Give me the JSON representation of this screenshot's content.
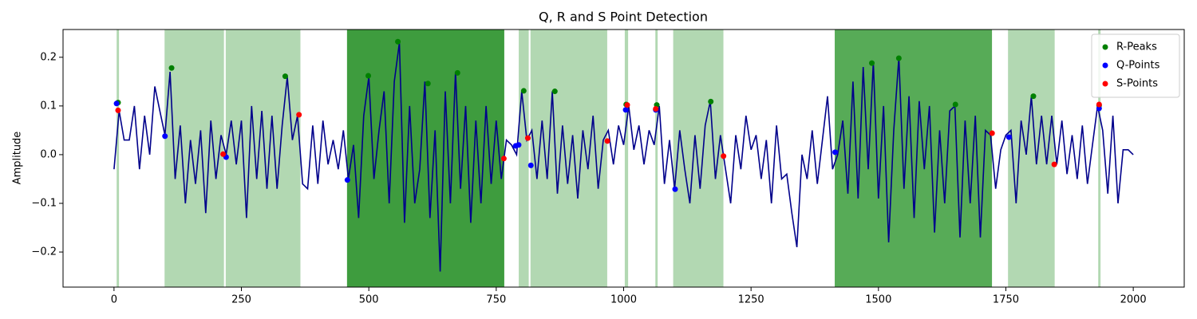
{
  "chart_data": {
    "type": "line",
    "title": "Q, R and S Point Detection",
    "y_label": "Amplitude",
    "xlim": [
      -100,
      2100
    ],
    "ylim": [
      -0.272,
      0.257
    ],
    "xticks": [
      0,
      250,
      500,
      750,
      1000,
      1250,
      1500,
      1750,
      2000
    ],
    "yticks": [
      {
        "value": -0.2,
        "label": "−0.2"
      },
      {
        "value": -0.1,
        "label": "−0.1"
      },
      {
        "value": 0,
        "label": "0.0"
      },
      0.1,
      0.2
    ],
    "legend": "upper right",
    "spans": [
      {
        "x": [
          6,
          9
        ],
        "color": "#b2d8b2"
      },
      {
        "x": [
          100,
          215
        ],
        "color": "#b2d8b2"
      },
      {
        "x": [
          220,
          365
        ],
        "color": "#b2d8b2"
      },
      {
        "x": [
          458,
          765
        ],
        "color": "#3e9c3e"
      },
      {
        "x": [
          795,
          813
        ],
        "color": "#b2d8b2"
      },
      {
        "x": [
          818,
          967
        ],
        "color": "#b2d8b2"
      },
      {
        "x": [
          1003,
          1008
        ],
        "color": "#b2d8b2"
      },
      {
        "x": [
          1063,
          1066
        ],
        "color": "#b2d8b2"
      },
      {
        "x": [
          1098,
          1195
        ],
        "color": "#b2d8b2"
      },
      {
        "x": [
          1415,
          1722
        ],
        "color": "#57ab57"
      },
      {
        "x": [
          1755,
          1845
        ],
        "color": "#b2d8b2"
      },
      {
        "x": [
          1932,
          1935
        ],
        "color": "#b2d8b2"
      }
    ],
    "series": [
      {
        "type": "line",
        "color": "#00008b",
        "x": [
          0,
          10,
          20,
          30,
          40,
          50,
          60,
          70,
          80,
          90,
          100,
          110,
          120,
          130,
          140,
          150,
          160,
          170,
          180,
          190,
          200,
          210,
          220,
          230,
          240,
          250,
          260,
          270,
          280,
          290,
          300,
          310,
          320,
          330,
          340,
          350,
          360,
          370,
          380,
          390,
          400,
          410,
          420,
          430,
          440,
          450,
          460,
          470,
          480,
          490,
          500,
          510,
          520,
          530,
          540,
          550,
          560,
          570,
          580,
          590,
          600,
          610,
          620,
          630,
          640,
          650,
          660,
          670,
          680,
          690,
          700,
          710,
          720,
          730,
          740,
          750,
          760,
          770,
          780,
          790,
          800,
          810,
          820,
          830,
          840,
          850,
          860,
          870,
          880,
          890,
          900,
          910,
          920,
          930,
          940,
          950,
          960,
          970,
          980,
          990,
          1000,
          1010,
          1020,
          1030,
          1040,
          1050,
          1060,
          1070,
          1080,
          1090,
          1100,
          1110,
          1120,
          1130,
          1140,
          1150,
          1160,
          1170,
          1180,
          1190,
          1200,
          1210,
          1220,
          1230,
          1240,
          1250,
          1260,
          1270,
          1280,
          1290,
          1300,
          1310,
          1320,
          1330,
          1340,
          1350,
          1360,
          1370,
          1380,
          1390,
          1400,
          1410,
          1420,
          1430,
          1440,
          1450,
          1460,
          1470,
          1480,
          1490,
          1500,
          1510,
          1520,
          1530,
          1540,
          1550,
          1560,
          1570,
          1580,
          1590,
          1600,
          1610,
          1620,
          1630,
          1640,
          1650,
          1660,
          1670,
          1680,
          1690,
          1700,
          1710,
          1720,
          1730,
          1740,
          1750,
          1760,
          1770,
          1780,
          1790,
          1800,
          1810,
          1820,
          1830,
          1840,
          1850,
          1860,
          1870,
          1880,
          1890,
          1900,
          1910,
          1920,
          1930,
          1940,
          1950,
          1960,
          1970,
          1980,
          1990,
          2000
        ],
        "values": [
          -0.03,
          0.09,
          0.03,
          0.03,
          0.1,
          -0.03,
          0.08,
          0.0,
          0.14,
          0.09,
          0.04,
          0.17,
          -0.05,
          0.06,
          -0.1,
          0.03,
          -0.06,
          0.05,
          -0.12,
          0.07,
          -0.05,
          0.04,
          0.0,
          0.07,
          -0.02,
          0.07,
          -0.13,
          0.1,
          -0.05,
          0.09,
          -0.07,
          0.08,
          -0.07,
          0.06,
          0.16,
          0.03,
          0.08,
          -0.06,
          -0.07,
          0.06,
          -0.06,
          0.07,
          -0.02,
          0.03,
          -0.03,
          0.05,
          -0.05,
          0.02,
          -0.13,
          0.08,
          0.16,
          -0.05,
          0.05,
          0.13,
          -0.1,
          0.15,
          0.23,
          -0.14,
          0.1,
          -0.1,
          -0.03,
          0.15,
          -0.13,
          0.05,
          -0.24,
          0.13,
          -0.1,
          0.17,
          -0.07,
          0.1,
          -0.14,
          0.07,
          -0.1,
          0.1,
          -0.06,
          0.07,
          -0.05,
          0.03,
          0.02,
          0.0,
          0.13,
          0.03,
          0.05,
          -0.05,
          0.07,
          -0.05,
          0.13,
          -0.08,
          0.06,
          -0.06,
          0.04,
          -0.09,
          0.05,
          -0.03,
          0.08,
          -0.07,
          0.03,
          0.05,
          -0.02,
          0.06,
          0.02,
          0.1,
          0.01,
          0.06,
          -0.02,
          0.05,
          0.02,
          0.1,
          -0.06,
          0.03,
          -0.07,
          0.05,
          -0.03,
          -0.1,
          0.04,
          -0.07,
          0.06,
          0.11,
          -0.05,
          0.04,
          -0.03,
          -0.1,
          0.04,
          -0.03,
          0.08,
          0.01,
          0.04,
          -0.05,
          0.03,
          -0.1,
          0.06,
          -0.05,
          -0.04,
          -0.12,
          -0.19,
          0.0,
          -0.05,
          0.05,
          -0.06,
          0.03,
          0.12,
          -0.03,
          0.0,
          0.07,
          -0.08,
          0.15,
          -0.09,
          0.18,
          -0.03,
          0.19,
          -0.09,
          0.1,
          -0.18,
          0.05,
          0.2,
          -0.07,
          0.12,
          -0.13,
          0.11,
          -0.03,
          0.1,
          -0.16,
          0.05,
          -0.1,
          0.09,
          0.1,
          -0.17,
          0.07,
          -0.1,
          0.08,
          -0.17,
          0.05,
          0.04,
          -0.07,
          0.01,
          0.04,
          0.05,
          -0.1,
          0.07,
          0.0,
          0.12,
          -0.02,
          0.08,
          -0.02,
          0.08,
          -0.02,
          0.07,
          -0.04,
          0.04,
          -0.05,
          0.06,
          -0.06,
          0.02,
          0.1,
          0.05,
          -0.08,
          0.08,
          -0.1,
          0.01,
          0.01,
          0.0
        ]
      },
      {
        "type": "scatter",
        "name": "R-Peaks",
        "color": "#008000",
        "x": [
          8,
          113,
          336,
          499,
          557,
          616,
          674,
          804,
          865,
          1005,
          1065,
          1171,
          1487,
          1540,
          1651,
          1804,
          1933
        ],
        "values": [
          0.107,
          0.178,
          0.161,
          0.162,
          0.232,
          0.146,
          0.168,
          0.131,
          0.13,
          0.103,
          0.102,
          0.109,
          0.188,
          0.198,
          0.103,
          0.12,
          0.101
        ]
      },
      {
        "type": "scatter",
        "name": "Q-Points",
        "color": "#0000ff",
        "x": [
          5,
          100,
          220,
          458,
          788,
          794,
          818,
          1004,
          1063,
          1101,
          1415,
          1756,
          1933
        ],
        "values": [
          0.105,
          0.038,
          -0.005,
          -0.052,
          0.018,
          0.02,
          -0.022,
          0.092,
          0.092,
          -0.071,
          0.005,
          0.036,
          0.095
        ]
      },
      {
        "type": "scatter",
        "name": "S-Points",
        "color": "#ff0000",
        "x": [
          8,
          214,
          363,
          765,
          812,
          968,
          1007,
          1063,
          1196,
          1723,
          1845,
          1933
        ],
        "values": [
          0.091,
          0.001,
          0.082,
          -0.008,
          0.034,
          0.028,
          0.102,
          0.094,
          -0.003,
          0.044,
          -0.02,
          0.103
        ]
      }
    ]
  }
}
